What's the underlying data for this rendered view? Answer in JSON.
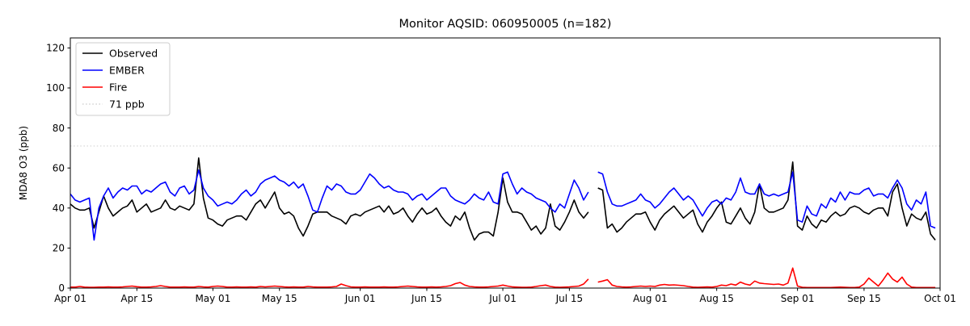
{
  "title": "Monitor AQSID: 060950005 (n=182)",
  "legend": {
    "position": "upper-left",
    "items": [
      {
        "label": "Observed",
        "color": "#000000",
        "dash": ""
      },
      {
        "label": "EMBER",
        "color": "#0000ff",
        "dash": ""
      },
      {
        "label": "Fire",
        "color": "#ff0000",
        "dash": ""
      },
      {
        "label": "71 ppb",
        "color": "#d3d3d3",
        "dash": "1.5 2.6"
      }
    ]
  },
  "chart_data": {
    "type": "line",
    "title": "Monitor AQSID: 060950005 (n=182)",
    "xlabel": "",
    "ylabel": "MDA8 O3 (ppb)",
    "ylim": [
      0,
      125
    ],
    "y_ticks": [
      0,
      20,
      40,
      60,
      80,
      100,
      120
    ],
    "x_days_total": 183,
    "x_start_label": "Apr 01",
    "x_end_label": "Oct 01",
    "x_tick_labels": [
      "Apr 01",
      "Apr 15",
      "May 01",
      "May 15",
      "Jun 01",
      "Jun 15",
      "Jul 01",
      "Jul 15",
      "Aug 01",
      "Aug 15",
      "Sep 01",
      "Sep 15",
      "Oct 01"
    ],
    "x_tick_days": [
      0,
      14,
      30,
      44,
      61,
      75,
      91,
      105,
      122,
      136,
      153,
      167,
      183
    ],
    "n_points": 182,
    "missing_day": "Jul 20",
    "grid": false,
    "reference_line": {
      "value": 71,
      "label": "71 ppb",
      "color": "#d3d3d3",
      "style": "dotted"
    },
    "series": [
      {
        "name": "Observed",
        "color": "#000000",
        "values": [
          42,
          40,
          39,
          39,
          40,
          30,
          38,
          46,
          40,
          36,
          38,
          40,
          41,
          44,
          38,
          40,
          42,
          38,
          39,
          40,
          44,
          40,
          39,
          41,
          40,
          39,
          42,
          65,
          45,
          35,
          34,
          32,
          31,
          34,
          35,
          36,
          36,
          34,
          38,
          42,
          44,
          40,
          44,
          48,
          40,
          37,
          38,
          36,
          30,
          26,
          31,
          37,
          38,
          38,
          38,
          36,
          35,
          34,
          32,
          36,
          37,
          36,
          38,
          39,
          40,
          41,
          38,
          41,
          37,
          38,
          40,
          36,
          33,
          37,
          40,
          37,
          38,
          40,
          36,
          33,
          31,
          36,
          34,
          38,
          30,
          24,
          27,
          28,
          28,
          26,
          38,
          55,
          43,
          38,
          38,
          37,
          33,
          29,
          31,
          27,
          30,
          42,
          31,
          29,
          33,
          38,
          44,
          38,
          35,
          38,
          null,
          50,
          49,
          30,
          32,
          28,
          30,
          33,
          35,
          37,
          37,
          38,
          33,
          29,
          34,
          37,
          39,
          41,
          38,
          35,
          37,
          39,
          32,
          28,
          33,
          36,
          40,
          43,
          33,
          32,
          36,
          40,
          35,
          32,
          38,
          52,
          40,
          38,
          38,
          39,
          40,
          44,
          63,
          31,
          29,
          36,
          32,
          30,
          34,
          33,
          36,
          38,
          36,
          37,
          40,
          41,
          40,
          38,
          37,
          39,
          40,
          40,
          36,
          48,
          52,
          40,
          31,
          37,
          35,
          34,
          38,
          27,
          24
        ]
      },
      {
        "name": "EMBER",
        "color": "#0000ff",
        "values": [
          47,
          44,
          43,
          44,
          45,
          24,
          40,
          46,
          50,
          45,
          48,
          50,
          49,
          51,
          51,
          47,
          49,
          48,
          50,
          52,
          53,
          48,
          46,
          50,
          51,
          47,
          49,
          59,
          50,
          46,
          44,
          41,
          42,
          43,
          42,
          44,
          47,
          49,
          46,
          48,
          52,
          54,
          55,
          56,
          54,
          53,
          51,
          53,
          50,
          52,
          46,
          39,
          38,
          45,
          51,
          49,
          52,
          51,
          48,
          47,
          47,
          49,
          53,
          57,
          55,
          52,
          50,
          51,
          49,
          48,
          48,
          47,
          44,
          46,
          47,
          44,
          46,
          48,
          50,
          50,
          46,
          44,
          43,
          42,
          44,
          47,
          45,
          44,
          48,
          43,
          42,
          57,
          58,
          52,
          47,
          50,
          48,
          47,
          45,
          44,
          43,
          40,
          38,
          42,
          40,
          47,
          54,
          50,
          44,
          48,
          null,
          58,
          57,
          48,
          42,
          41,
          41,
          42,
          43,
          44,
          47,
          44,
          43,
          40,
          42,
          45,
          48,
          50,
          47,
          44,
          46,
          44,
          40,
          36,
          40,
          43,
          44,
          42,
          45,
          44,
          48,
          55,
          48,
          47,
          47,
          52,
          47,
          46,
          47,
          46,
          47,
          48,
          58,
          34,
          33,
          41,
          37,
          36,
          42,
          40,
          45,
          43,
          48,
          44,
          48,
          47,
          47,
          49,
          50,
          46,
          47,
          47,
          45,
          50,
          54,
          50,
          42,
          39,
          44,
          42,
          48,
          31,
          30
        ]
      },
      {
        "name": "Fire",
        "color": "#ff0000",
        "values": [
          0.5,
          0.5,
          0.8,
          0.5,
          0.4,
          0.4,
          0.5,
          0.5,
          0.6,
          0.5,
          0.5,
          0.6,
          0.8,
          1.0,
          0.7,
          0.5,
          0.5,
          0.6,
          0.8,
          1.2,
          0.8,
          0.5,
          0.5,
          0.5,
          0.6,
          0.5,
          0.5,
          0.8,
          0.6,
          0.5,
          0.8,
          1.0,
          0.8,
          0.5,
          0.5,
          0.6,
          0.5,
          0.5,
          0.6,
          0.5,
          0.8,
          0.6,
          0.8,
          1.0,
          0.8,
          0.6,
          0.5,
          0.6,
          0.5,
          0.5,
          0.8,
          0.6,
          0.5,
          0.5,
          0.5,
          0.6,
          0.8,
          2.0,
          1.2,
          0.6,
          0.5,
          0.5,
          0.6,
          0.5,
          0.5,
          0.5,
          0.6,
          0.5,
          0.5,
          0.6,
          0.8,
          1.0,
          0.8,
          0.6,
          0.5,
          0.5,
          0.6,
          0.5,
          0.6,
          0.8,
          1.2,
          2.2,
          2.8,
          1.5,
          0.8,
          0.6,
          0.5,
          0.5,
          0.6,
          0.8,
          1.0,
          1.5,
          1.0,
          0.6,
          0.5,
          0.4,
          0.4,
          0.5,
          0.8,
          1.2,
          1.5,
          0.8,
          0.5,
          0.4,
          0.5,
          0.6,
          0.8,
          1.0,
          2.0,
          4.5,
          null,
          3.0,
          3.5,
          4.2,
          1.5,
          0.8,
          0.6,
          0.5,
          0.6,
          0.8,
          1.0,
          0.8,
          1.0,
          0.8,
          1.5,
          1.8,
          1.5,
          1.6,
          1.4,
          1.2,
          0.8,
          0.5,
          0.4,
          0.5,
          0.6,
          0.5,
          0.8,
          1.5,
          1.2,
          2.0,
          1.5,
          3.0,
          2.0,
          1.5,
          3.5,
          2.5,
          2.2,
          2.0,
          1.8,
          2.0,
          1.5,
          2.5,
          10.0,
          1.0,
          0.4,
          0.3,
          0.3,
          0.3,
          0.3,
          0.3,
          0.3,
          0.4,
          0.5,
          0.4,
          0.3,
          0.3,
          0.5,
          2.0,
          5.0,
          3.0,
          1.0,
          4.0,
          7.5,
          4.5,
          3.0,
          5.5,
          2.0,
          0.5,
          0.3,
          0.3,
          0.3,
          0.3,
          0.3
        ]
      }
    ]
  }
}
